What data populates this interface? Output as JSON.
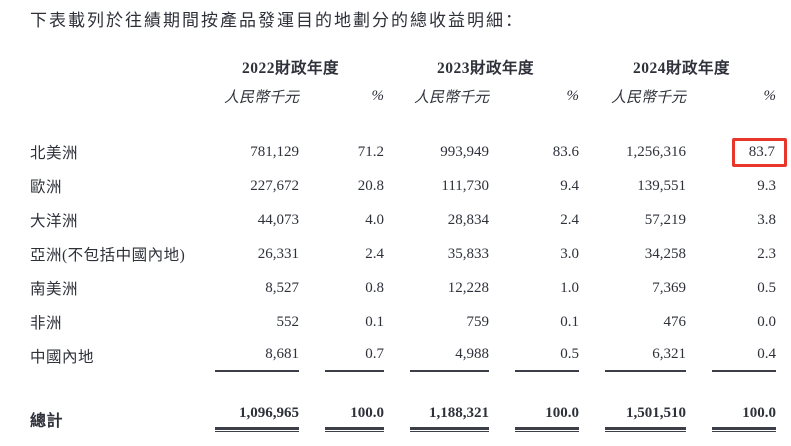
{
  "title": "下表載列於往績期間按產品發運目的地劃分的總收益明細：",
  "table": {
    "year_headers": [
      "2022財政年度",
      "2023財政年度",
      "2024財政年度"
    ],
    "unit_label": "人民幣千元",
    "percent_label": "%",
    "rows": [
      {
        "label": "北美洲",
        "values": [
          "781,129",
          "71.2",
          "993,949",
          "83.6",
          "1,256,316",
          "83.7"
        ],
        "highlight_cell": 5
      },
      {
        "label": "歐洲",
        "values": [
          "227,672",
          "20.8",
          "111,730",
          "9.4",
          "139,551",
          "9.3"
        ]
      },
      {
        "label": "大洋洲",
        "values": [
          "44,073",
          "4.0",
          "28,834",
          "2.4",
          "57,219",
          "3.8"
        ]
      },
      {
        "label": "亞洲(不包括中國內地)",
        "values": [
          "26,331",
          "2.4",
          "35,833",
          "3.0",
          "34,258",
          "2.3"
        ]
      },
      {
        "label": "南美洲",
        "values": [
          "8,527",
          "0.8",
          "12,228",
          "1.0",
          "7,369",
          "0.5"
        ]
      },
      {
        "label": "非洲",
        "values": [
          "552",
          "0.1",
          "759",
          "0.1",
          "476",
          "0.0"
        ]
      },
      {
        "label": "中國內地",
        "values": [
          "8,681",
          "0.7",
          "4,988",
          "0.5",
          "6,321",
          "0.4"
        ],
        "underline": true
      }
    ],
    "total_row": {
      "label": "總計",
      "values": [
        "1,096,965",
        "100.0",
        "1,188,321",
        "100.0",
        "1,501,510",
        "100.0"
      ]
    }
  },
  "colors": {
    "text": "#2e313a",
    "highlight_box": "#e8362a",
    "rule": "#3c3f48"
  }
}
